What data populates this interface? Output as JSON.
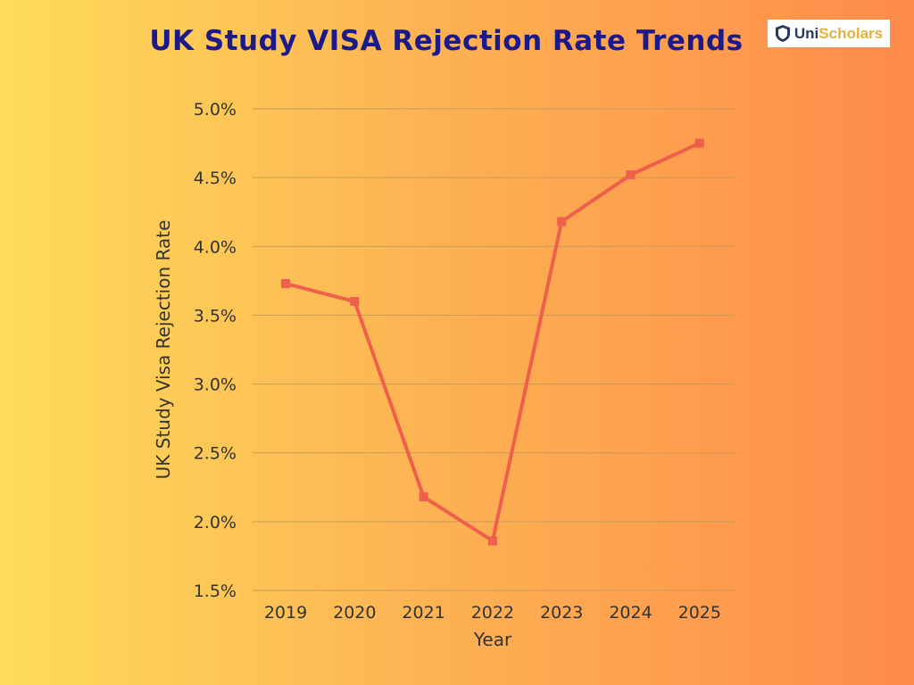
{
  "logo": {
    "text_a": "Uni",
    "text_b": "Scholars"
  },
  "chart_data": {
    "type": "line",
    "title": "UK Study VISA Rejection Rate Trends",
    "xlabel": "Year",
    "ylabel": "UK Study Visa Rejection Rate",
    "categories": [
      "2019",
      "2020",
      "2021",
      "2022",
      "2023",
      "2024",
      "2025"
    ],
    "values": [
      3.73,
      3.6,
      2.18,
      1.86,
      4.18,
      4.52,
      4.75
    ],
    "ylim": [
      1.5,
      5.0
    ],
    "yticks": [
      "1.5%",
      "2.0%",
      "2.5%",
      "3.0%",
      "3.5%",
      "4.0%",
      "4.5%",
      "5.0%"
    ],
    "grid": true,
    "line_color": "#ee5f4c"
  }
}
